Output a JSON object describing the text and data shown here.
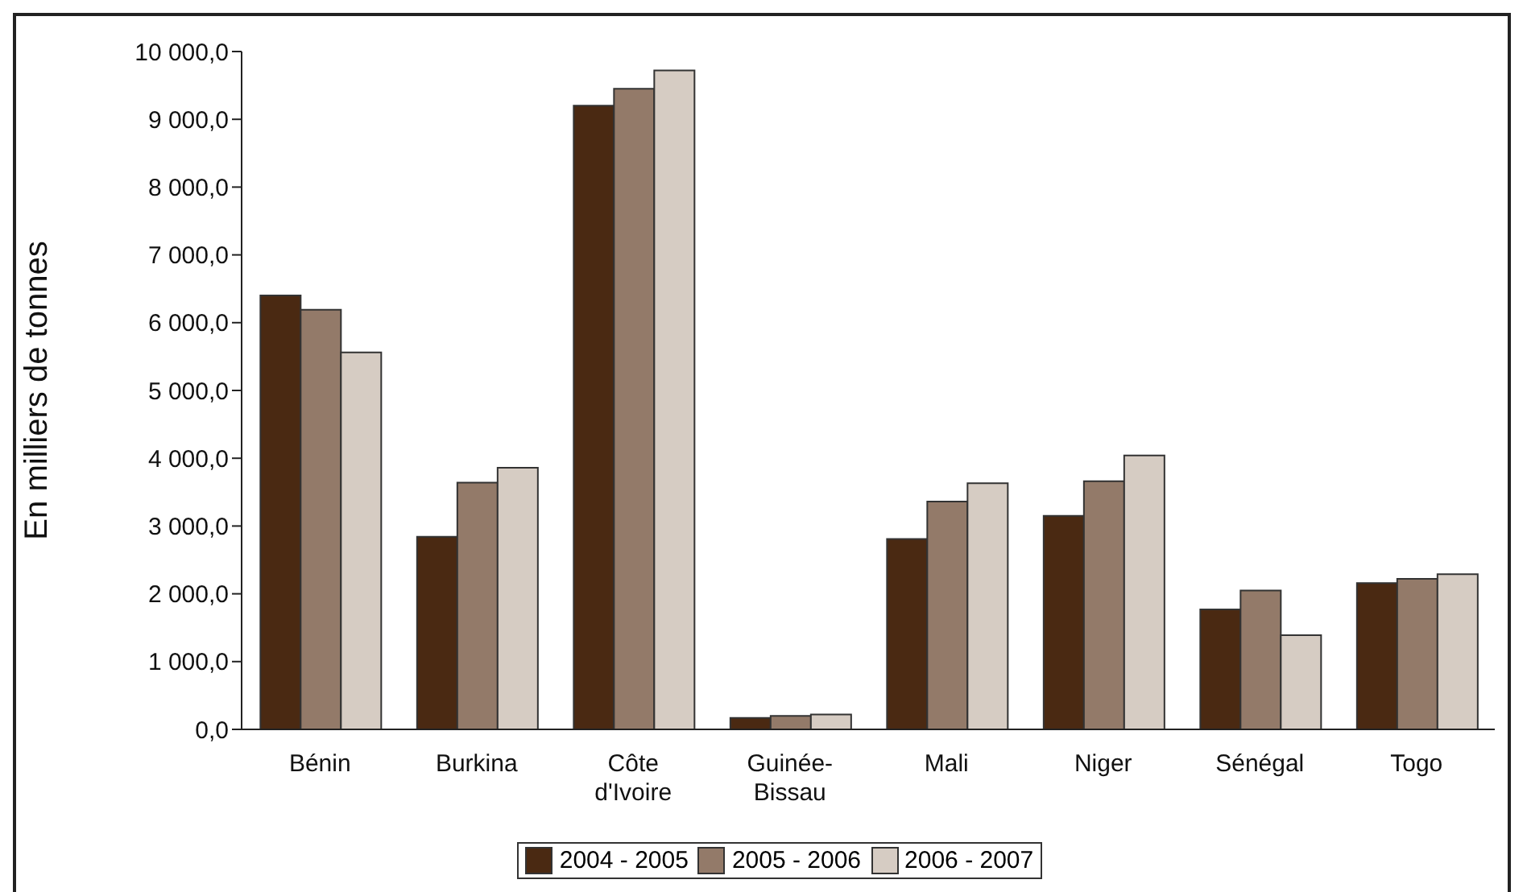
{
  "chart_data": {
    "type": "bar",
    "ylabel": "En milliers de tonnes",
    "categories": [
      "Bénin",
      "Burkina",
      "Côte\nd'Ivoire",
      "Guinée-\nBissau",
      "Mali",
      "Niger",
      "Sénégal",
      "Togo"
    ],
    "series": [
      {
        "name": "2004 - 2005",
        "color": "#4a2912",
        "values": [
          6400,
          2840,
          9200,
          170,
          2810,
          3150,
          1770,
          2160
        ]
      },
      {
        "name": "2005 - 2006",
        "color": "#937a69",
        "values": [
          6190,
          3640,
          9450,
          200,
          3360,
          3660,
          2050,
          2220
        ]
      },
      {
        "name": "2006 - 2007",
        "color": "#d6ccc3",
        "values": [
          5560,
          3860,
          9720,
          220,
          3630,
          4040,
          1390,
          2290
        ]
      }
    ],
    "ylim": [
      0,
      10000
    ],
    "yticks": [
      {
        "value": 0,
        "label": "0,0"
      },
      {
        "value": 1000,
        "label": "1 000,0"
      },
      {
        "value": 2000,
        "label": "2 000,0"
      },
      {
        "value": 3000,
        "label": "3 000,0"
      },
      {
        "value": 4000,
        "label": "4 000,0"
      },
      {
        "value": 5000,
        "label": "5 000,0"
      },
      {
        "value": 6000,
        "label": "6 000,0"
      },
      {
        "value": 7000,
        "label": "7 000,0"
      },
      {
        "value": 8000,
        "label": "8 000,0"
      },
      {
        "value": 9000,
        "label": "9 000,0"
      },
      {
        "value": 10000,
        "label": "10 000,0"
      }
    ],
    "grid": false,
    "legend": "bottom"
  }
}
